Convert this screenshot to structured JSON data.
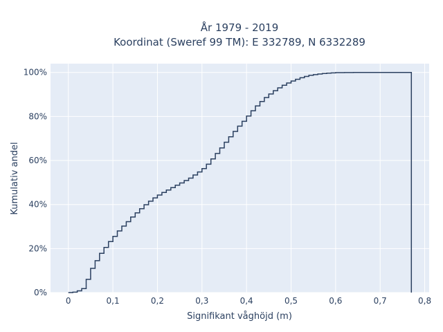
{
  "chart_data": {
    "type": "line",
    "step": true,
    "title_lines": [
      "År 1979 - 2019",
      "Koordinat (Sweref 99 TM): E 332789, N 6332289"
    ],
    "xlabel": "Signifikant våghöjd (m)",
    "ylabel": "Kumulativ andel",
    "xlim": [
      -0.04,
      0.81
    ],
    "ylim": [
      0,
      1.04
    ],
    "x_ticks": [
      {
        "value": 0,
        "label": "0"
      },
      {
        "value": 0.1,
        "label": "0,1"
      },
      {
        "value": 0.2,
        "label": "0,2"
      },
      {
        "value": 0.3,
        "label": "0,3"
      },
      {
        "value": 0.4,
        "label": "0,4"
      },
      {
        "value": 0.5,
        "label": "0,5"
      },
      {
        "value": 0.6,
        "label": "0,6"
      },
      {
        "value": 0.7,
        "label": "0,7"
      },
      {
        "value": 0.8,
        "label": "0,8"
      }
    ],
    "y_ticks": [
      {
        "value": 0,
        "label": "0%"
      },
      {
        "value": 0.2,
        "label": "20%"
      },
      {
        "value": 0.4,
        "label": "40%"
      },
      {
        "value": 0.6,
        "label": "60%"
      },
      {
        "value": 0.8,
        "label": "80%"
      },
      {
        "value": 1.0,
        "label": "100%"
      }
    ],
    "grid": true,
    "colors": {
      "background": "#e5ecf6",
      "grid": "#ffffff",
      "line": "#2a3f5f"
    },
    "series": [
      {
        "x": [
          0,
          0.01,
          0.02,
          0.03,
          0.04,
          0.05,
          0.06,
          0.07,
          0.08,
          0.09,
          0.1,
          0.11,
          0.12,
          0.13,
          0.14,
          0.15,
          0.16,
          0.17,
          0.18,
          0.19,
          0.2,
          0.21,
          0.22,
          0.23,
          0.24,
          0.25,
          0.26,
          0.27,
          0.28,
          0.29,
          0.3,
          0.31,
          0.32,
          0.33,
          0.34,
          0.35,
          0.36,
          0.37,
          0.38,
          0.39,
          0.4,
          0.41,
          0.42,
          0.43,
          0.44,
          0.45,
          0.46,
          0.47,
          0.48,
          0.49,
          0.5,
          0.51,
          0.52,
          0.53,
          0.54,
          0.55,
          0.56,
          0.57,
          0.58,
          0.59,
          0.6,
          0.62,
          0.64,
          0.66,
          0.7,
          0.77
        ],
        "y": [
          0.0,
          0.002,
          0.008,
          0.018,
          0.06,
          0.11,
          0.145,
          0.178,
          0.205,
          0.232,
          0.255,
          0.28,
          0.302,
          0.322,
          0.343,
          0.362,
          0.381,
          0.399,
          0.415,
          0.43,
          0.443,
          0.455,
          0.466,
          0.477,
          0.488,
          0.498,
          0.509,
          0.52,
          0.534,
          0.548,
          0.563,
          0.583,
          0.607,
          0.632,
          0.657,
          0.683,
          0.708,
          0.732,
          0.756,
          0.778,
          0.802,
          0.826,
          0.848,
          0.868,
          0.886,
          0.902,
          0.917,
          0.93,
          0.942,
          0.952,
          0.961,
          0.969,
          0.976,
          0.982,
          0.987,
          0.99,
          0.993,
          0.995,
          0.997,
          0.998,
          0.999,
          0.9995,
          0.9998,
          1.0,
          1.0,
          0.0
        ]
      }
    ]
  }
}
